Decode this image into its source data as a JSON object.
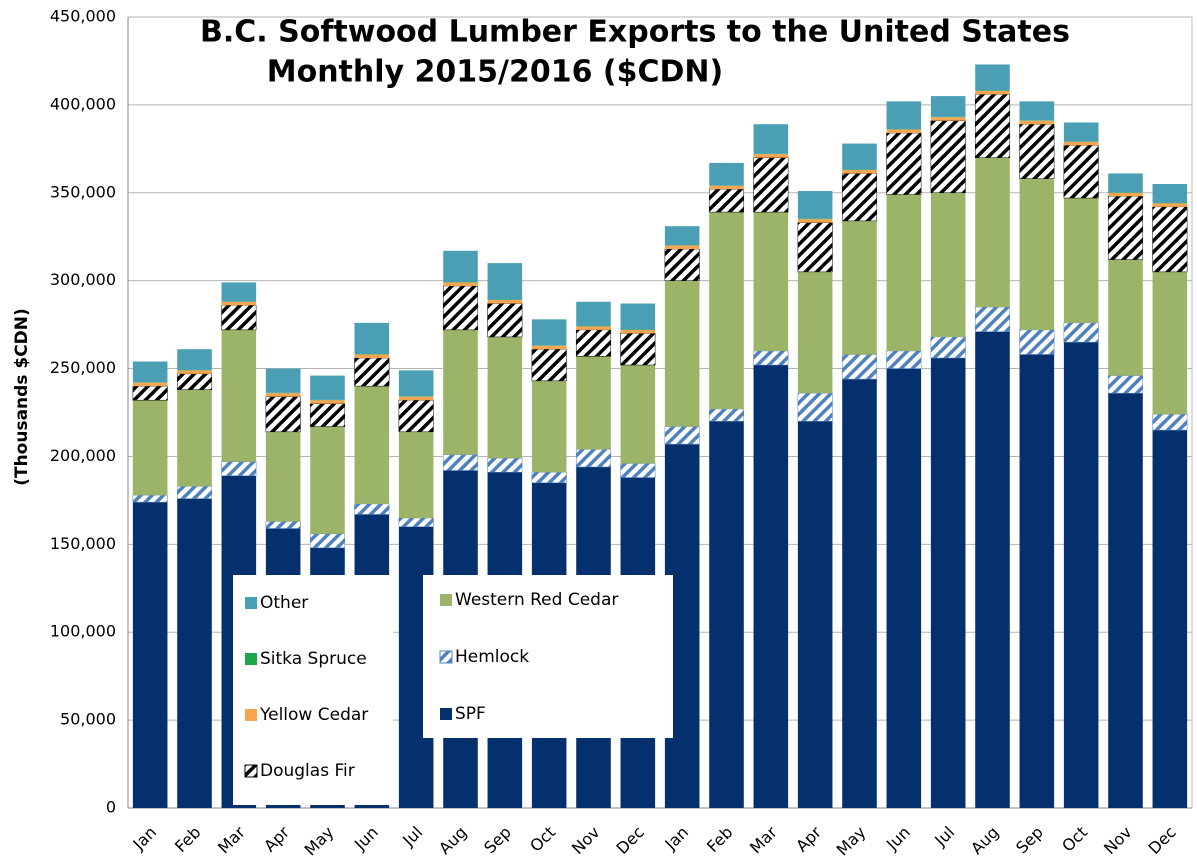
{
  "chart_data": {
    "type": "stacked_bar",
    "title": [
      "B.C. Softwood Lumber Exports to the United States",
      "Monthly 2015/2016 ($CDN)"
    ],
    "ylabel": "(Thousands $CDN)",
    "categories": [
      "Jan",
      "Feb",
      "Mar",
      "Apr",
      "May",
      "Jun",
      "Jul",
      "Aug",
      "Sep",
      "Oct",
      "Nov",
      "Dec",
      "Jan",
      "Feb",
      "Mar",
      "Apr",
      "May",
      "Jun",
      "Jul",
      "Aug",
      "Sep",
      "Oct",
      "Nov",
      "Dec"
    ],
    "series": [
      {
        "name": "SPF",
        "color": "#04306e",
        "values": [
          174000,
          176000,
          189000,
          159000,
          148000,
          167000,
          160000,
          192000,
          191000,
          185000,
          194000,
          188000,
          207000,
          220000,
          252000,
          220000,
          244000,
          250000,
          256000,
          271000,
          258000,
          265000,
          236000,
          215000
        ]
      },
      {
        "name": "Hemlock",
        "color": "#4f81bd",
        "hatch": true,
        "values": [
          4000,
          7000,
          8000,
          4000,
          8000,
          6000,
          5000,
          9000,
          8000,
          6000,
          10000,
          8000,
          10000,
          7000,
          8000,
          16000,
          14000,
          10000,
          12000,
          14000,
          14000,
          11000,
          10000,
          9000
        ]
      },
      {
        "name": "Western Red Cedar",
        "color": "#9bb467",
        "values": [
          54000,
          55000,
          75000,
          51000,
          61000,
          67000,
          49000,
          71000,
          69000,
          52000,
          53000,
          56000,
          83000,
          112000,
          79000,
          69000,
          76000,
          89000,
          82000,
          85000,
          86000,
          71000,
          66000,
          81000
        ]
      },
      {
        "name": "Douglas Fir",
        "color": "#000000",
        "hatch": true,
        "values": [
          8000,
          9000,
          14000,
          20000,
          13000,
          16000,
          18000,
          25000,
          19000,
          18000,
          15000,
          18000,
          18000,
          13000,
          31000,
          28000,
          27000,
          35000,
          41000,
          36000,
          31000,
          30000,
          36000,
          37000
        ]
      },
      {
        "name": "Yellow Cedar",
        "color": "#f6a653",
        "values": [
          2000,
          2000,
          2000,
          2000,
          2000,
          2000,
          2000,
          2000,
          2000,
          2000,
          2000,
          2000,
          2000,
          2000,
          2000,
          2000,
          2000,
          2000,
          2000,
          2000,
          2000,
          2000,
          2000,
          2000
        ]
      },
      {
        "name": "Sitka Spruce",
        "color": "#1aa64a",
        "values": [
          200,
          200,
          200,
          200,
          200,
          200,
          200,
          200,
          200,
          200,
          200,
          200,
          200,
          200,
          200,
          200,
          200,
          200,
          200,
          200,
          200,
          200,
          200,
          200
        ]
      },
      {
        "name": "Other",
        "color": "#4a9fb5",
        "values": [
          11800,
          11800,
          10800,
          13800,
          13800,
          17800,
          14800,
          17800,
          20800,
          14800,
          13800,
          14800,
          10800,
          12800,
          16800,
          15800,
          14800,
          15800,
          11800,
          14800,
          10800,
          10800,
          10800,
          10800
        ]
      }
    ],
    "ylim": [
      0,
      450000
    ],
    "yticks": [
      0,
      {
        "value": 50000,
        "label": "50,000"
      },
      {
        "value": 100000,
        "label": "100,000"
      },
      {
        "value": 150000,
        "label": "150,000"
      },
      {
        "value": 200000,
        "label": "200,000"
      },
      {
        "value": 250000,
        "label": "250,000"
      },
      {
        "value": 300000,
        "label": "300,000"
      },
      {
        "value": 350000,
        "label": "350,000"
      },
      {
        "value": 400000,
        "label": "400,000"
      },
      {
        "value": 450000,
        "label": "450,000"
      }
    ],
    "grid": true
  }
}
